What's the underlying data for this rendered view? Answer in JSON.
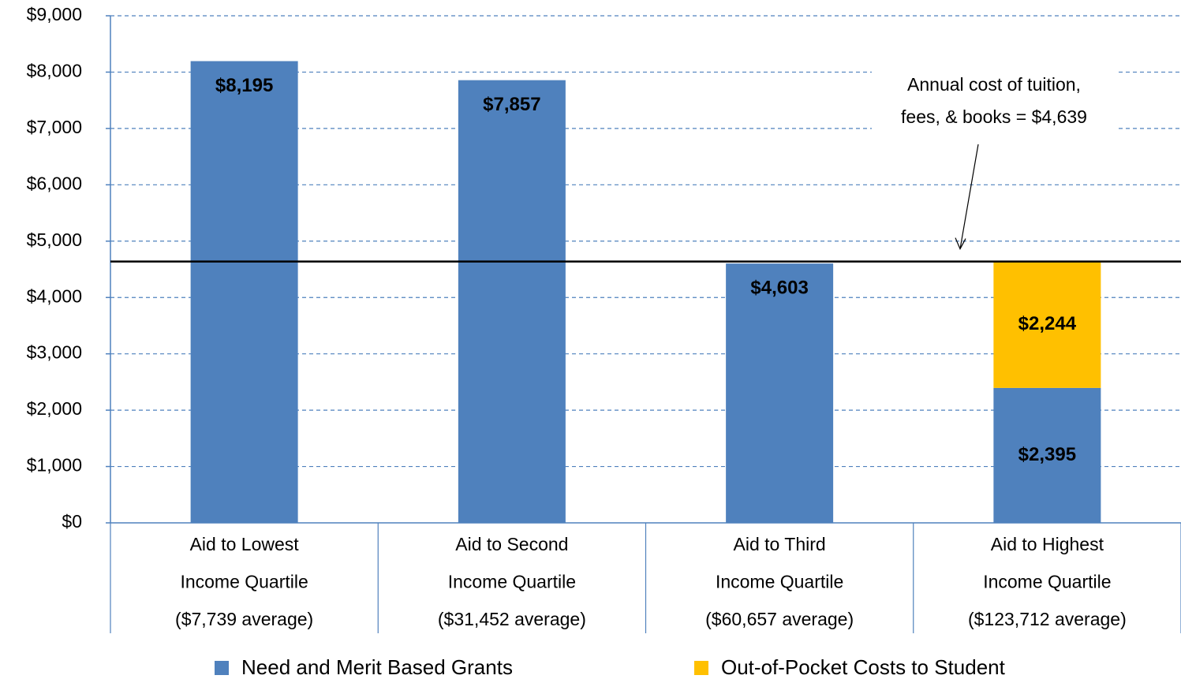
{
  "chart_data": {
    "type": "stacked_bar",
    "categories": [
      [
        "Aid to Lowest",
        "Income Quartile",
        "($7,739 average)"
      ],
      [
        "Aid to Second",
        "Income Quartile",
        "($31,452 average)"
      ],
      [
        "Aid to Third",
        "Income Quartile",
        "($60,657 average)"
      ],
      [
        "Aid to Highest",
        "Income Quartile",
        "($123,712 average)"
      ]
    ],
    "series": [
      {
        "name": "Need and Merit Based Grants",
        "color": "#4f81bd",
        "values": [
          8195,
          7857,
          4603,
          2395
        ],
        "value_labels": [
          "$8,195",
          "$7,857",
          "$4,603",
          "$2,395"
        ]
      },
      {
        "name": "Out-of-Pocket Costs to Student",
        "color": "#ffc000",
        "values": [
          null,
          null,
          null,
          2244
        ],
        "value_labels": [
          null,
          null,
          null,
          "$2,244"
        ]
      }
    ],
    "ylim": [
      0,
      9000
    ],
    "yticks": [
      {
        "value": 0,
        "label": "$0"
      },
      {
        "value": 1000,
        "label": "$1,000"
      },
      {
        "value": 2000,
        "label": "$2,000"
      },
      {
        "value": 3000,
        "label": "$3,000"
      },
      {
        "value": 4000,
        "label": "$4,000"
      },
      {
        "value": 5000,
        "label": "$5,000"
      },
      {
        "value": 6000,
        "label": "$6,000"
      },
      {
        "value": 7000,
        "label": "$7,000"
      },
      {
        "value": 8000,
        "label": "$8,000"
      },
      {
        "value": 9000,
        "label": "$9,000"
      }
    ],
    "grid": true,
    "reference_line": {
      "value": 4639,
      "label": [
        "Annual cost of tuition,",
        "fees, & books = $4,639"
      ]
    },
    "legend": "bottom"
  }
}
